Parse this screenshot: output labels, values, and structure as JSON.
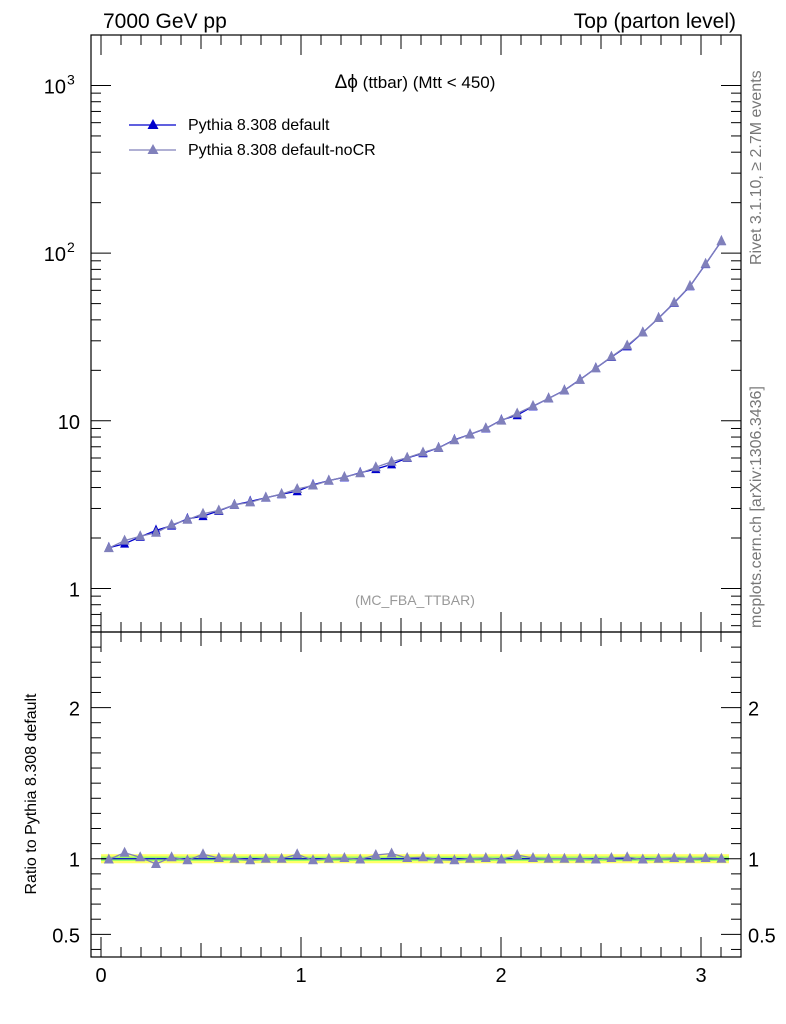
{
  "header": {
    "left": "7000 GeV pp",
    "right": "Top (parton level)"
  },
  "side_labels": {
    "rivet": "Rivet 3.1.10, ≥ 2.7M events",
    "mcplots": "mcplots.cern.ch [arXiv:1306.3436]"
  },
  "plot_title": {
    "symbol": "Δϕ",
    "rest": " (ttbar) (Mtt < 450)"
  },
  "analysis_tag": "(MC_FBA_TTBAR)",
  "colors": {
    "default": "#0000cc",
    "nocr": "#8080bb",
    "band_outer": "#ffff66",
    "band_inner": "#99ff66"
  },
  "chart_data": [
    {
      "type": "line",
      "y_scale": "log",
      "xlim": [
        -0.05,
        3.2
      ],
      "ylim": [
        0.55,
        2000
      ],
      "y_ticks": [
        {
          "value": 1,
          "label": "1"
        },
        {
          "value": 10,
          "label": "10"
        },
        {
          "value": 100,
          "label": "10",
          "exp": "2"
        },
        {
          "value": 1000,
          "label": "10",
          "exp": "3"
        }
      ],
      "x": [
        0.039,
        0.118,
        0.196,
        0.275,
        0.353,
        0.432,
        0.51,
        0.589,
        0.667,
        0.746,
        0.824,
        0.903,
        0.981,
        1.06,
        1.139,
        1.217,
        1.296,
        1.374,
        1.453,
        1.531,
        1.61,
        1.688,
        1.767,
        1.845,
        1.924,
        2.002,
        2.081,
        2.16,
        2.238,
        2.317,
        2.395,
        2.474,
        2.552,
        2.631,
        2.709,
        2.788,
        2.866,
        2.945,
        3.023,
        3.102
      ],
      "series": [
        {
          "name": "Pythia 8.308 default",
          "values": [
            1.75,
            1.85,
            2.03,
            2.22,
            2.37,
            2.6,
            2.7,
            2.9,
            3.15,
            3.3,
            3.48,
            3.65,
            3.8,
            4.15,
            4.4,
            4.6,
            4.9,
            5.15,
            5.5,
            6.0,
            6.4,
            6.9,
            7.7,
            8.3,
            9.0,
            10.1,
            10.8,
            12.2,
            13.6,
            15.2,
            17.6,
            20.6,
            24.0,
            27.8,
            33.6,
            41.0,
            50.5,
            63.5,
            86.0,
            118.0
          ]
        },
        {
          "name": "Pythia 8.308 default-noCR",
          "values": [
            1.74,
            1.93,
            2.05,
            2.15,
            2.4,
            2.57,
            2.79,
            2.92,
            3.15,
            3.26,
            3.48,
            3.66,
            3.92,
            4.11,
            4.4,
            4.62,
            4.87,
            5.28,
            5.7,
            6.02,
            6.47,
            6.9,
            7.65,
            8.3,
            9.03,
            10.03,
            11.05,
            12.26,
            13.6,
            15.18,
            17.53,
            20.58,
            24.08,
            28.13,
            33.6,
            41.05,
            50.7,
            63.7,
            86.3,
            118.0
          ]
        }
      ]
    },
    {
      "type": "line",
      "ylabel": "Ratio to Pythia 8.308 default",
      "xlim": [
        -0.05,
        3.2
      ],
      "ylim": [
        0.35,
        2.5
      ],
      "x_ticks": [
        {
          "value": 0,
          "label": "0"
        },
        {
          "value": 1,
          "label": "1"
        },
        {
          "value": 2,
          "label": "2"
        },
        {
          "value": 3,
          "label": "3"
        }
      ],
      "y_ticks": [
        {
          "value": 0.5,
          "label": "0.5"
        },
        {
          "value": 1,
          "label": "1"
        },
        {
          "value": 2,
          "label": "2"
        }
      ],
      "x": [
        0.039,
        0.118,
        0.196,
        0.275,
        0.353,
        0.432,
        0.51,
        0.589,
        0.667,
        0.746,
        0.824,
        0.903,
        0.981,
        1.06,
        1.139,
        1.217,
        1.296,
        1.374,
        1.453,
        1.531,
        1.61,
        1.688,
        1.767,
        1.845,
        1.924,
        2.002,
        2.081,
        2.16,
        2.238,
        2.317,
        2.395,
        2.474,
        2.552,
        2.631,
        2.709,
        2.788,
        2.866,
        2.945,
        3.023,
        3.102
      ],
      "series": [
        {
          "name": "Pythia 8.308 default-noCR",
          "values": [
            0.995,
            1.04,
            1.01,
            0.965,
            1.01,
            0.99,
            1.03,
            1.005,
            1.0,
            0.99,
            1.0,
            1.0,
            1.03,
            0.99,
            1.0,
            1.005,
            0.995,
            1.025,
            1.035,
            1.005,
            1.01,
            0.995,
            0.99,
            1.0,
            1.005,
            0.995,
            1.025,
            1.005,
            1.0,
            1.0,
            1.0,
            0.995,
            1.005,
            1.01,
            0.995,
            1.0,
            1.005,
            1.0,
            1.005,
            1.0
          ]
        }
      ],
      "band": {
        "outer": 0.03,
        "inner": 0.015
      }
    }
  ]
}
